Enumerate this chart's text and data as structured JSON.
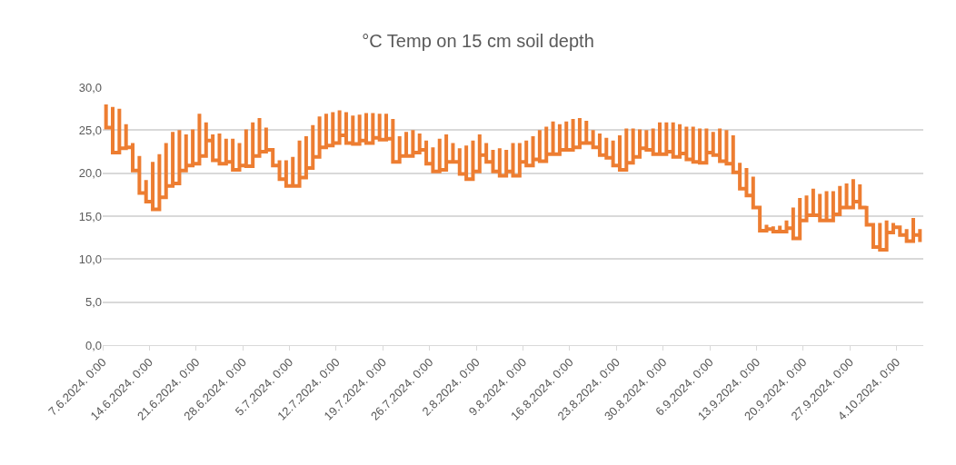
{
  "chart_data": {
    "type": "step",
    "title": "°C Temp on 15 cm soil depth",
    "xlim": [
      "2024-06-07",
      "2024-10-08"
    ],
    "xticks": [
      {
        "value": "2024-06-07",
        "label": "7.6.2024. 0:00"
      },
      {
        "value": "2024-06-14",
        "label": "14.6.2024. 0:00"
      },
      {
        "value": "2024-06-21",
        "label": "21.6.2024. 0:00"
      },
      {
        "value": "2024-06-28",
        "label": "28.6.2024. 0:00"
      },
      {
        "value": "2024-07-05",
        "label": "5.7.2024. 0:00"
      },
      {
        "value": "2024-07-12",
        "label": "12.7.2024. 0:00"
      },
      {
        "value": "2024-07-19",
        "label": "19.7.2024. 0:00"
      },
      {
        "value": "2024-07-26",
        "label": "26.7.2024. 0:00"
      },
      {
        "value": "2024-08-02",
        "label": "2.8.2024. 0:00"
      },
      {
        "value": "2024-08-09",
        "label": "9.8.2024. 0:00"
      },
      {
        "value": "2024-08-16",
        "label": "16.8.2024. 0:00"
      },
      {
        "value": "2024-08-23",
        "label": "23.8.2024. 0:00"
      },
      {
        "value": "2024-08-30",
        "label": "30.8.2024. 0:00"
      },
      {
        "value": "2024-09-06",
        "label": "6.9.2024. 0:00"
      },
      {
        "value": "2024-09-13",
        "label": "13.9.2024. 0:00"
      },
      {
        "value": "2024-09-20",
        "label": "20.9.2024. 0:00"
      },
      {
        "value": "2024-09-27",
        "label": "27.9.2024. 0:00"
      },
      {
        "value": "2024-10-04",
        "label": "4.10.2024. 0:00"
      }
    ],
    "ylim": [
      0,
      30
    ],
    "yticks": [
      {
        "value": 0,
        "label": "0,0"
      },
      {
        "value": 5,
        "label": "5,0"
      },
      {
        "value": 10,
        "label": "10,0"
      },
      {
        "value": 15,
        "label": "15,0"
      },
      {
        "value": 20,
        "label": "20,0"
      },
      {
        "value": 25,
        "label": "25,0"
      },
      {
        "value": 30,
        "label": "30,0"
      }
    ],
    "grid": "y",
    "marker": "none",
    "line_style": "solid",
    "series": [
      {
        "color": "#ed7d31",
        "x": [
          "2024-06-07T12:00",
          "2024-06-07T12:00",
          "2024-06-08T12:00",
          "2024-06-08T12:00",
          "2024-06-09T12:00",
          "2024-06-09T12:00",
          "2024-06-10T12:00",
          "2024-06-10T12:00",
          "2024-06-11T12:00",
          "2024-06-11T12:00",
          "2024-06-12T12:00",
          "2024-06-12T12:00",
          "2024-06-13T12:00",
          "2024-06-13T12:00",
          "2024-06-14T12:00",
          "2024-06-14T12:00",
          "2024-06-15T12:00",
          "2024-06-15T12:00",
          "2024-06-16T12:00",
          "2024-06-16T12:00",
          "2024-06-17T12:00",
          "2024-06-17T12:00",
          "2024-06-18T12:00",
          "2024-06-18T12:00",
          "2024-06-19T12:00",
          "2024-06-19T12:00",
          "2024-06-20T12:00",
          "2024-06-20T12:00",
          "2024-06-21T12:00",
          "2024-06-21T12:00",
          "2024-06-22T12:00",
          "2024-06-22T12:00",
          "2024-06-23T12:00",
          "2024-06-23T12:00",
          "2024-06-24T12:00",
          "2024-06-24T12:00",
          "2024-06-25T12:00",
          "2024-06-25T12:00",
          "2024-06-26T12:00",
          "2024-06-26T12:00",
          "2024-06-27T12:00",
          "2024-06-27T12:00",
          "2024-06-28T12:00",
          "2024-06-28T12:00",
          "2024-06-29T12:00",
          "2024-06-29T12:00",
          "2024-06-30T12:00",
          "2024-06-30T12:00",
          "2024-07-01T12:00",
          "2024-07-01T12:00",
          "2024-07-02T12:00",
          "2024-07-02T12:00",
          "2024-07-03T12:00",
          "2024-07-03T12:00",
          "2024-07-04T12:00",
          "2024-07-04T12:00",
          "2024-07-05T12:00",
          "2024-07-05T12:00",
          "2024-07-06T12:00",
          "2024-07-06T12:00",
          "2024-07-07T12:00",
          "2024-07-07T12:00",
          "2024-07-08T12:00",
          "2024-07-08T12:00",
          "2024-07-09T12:00",
          "2024-07-09T12:00",
          "2024-07-10T12:00",
          "2024-07-10T12:00",
          "2024-07-11T12:00",
          "2024-07-11T12:00",
          "2024-07-12T12:00",
          "2024-07-12T12:00",
          "2024-07-13T12:00",
          "2024-07-13T12:00",
          "2024-07-14T12:00",
          "2024-07-14T12:00",
          "2024-07-15T12:00",
          "2024-07-15T12:00",
          "2024-07-16T12:00",
          "2024-07-16T12:00",
          "2024-07-17T12:00",
          "2024-07-17T12:00",
          "2024-07-18T12:00",
          "2024-07-18T12:00",
          "2024-07-19T12:00",
          "2024-07-19T12:00",
          "2024-07-20T12:00",
          "2024-07-20T12:00",
          "2024-07-21T12:00",
          "2024-07-21T12:00",
          "2024-07-22T12:00",
          "2024-07-22T12:00",
          "2024-07-23T12:00",
          "2024-07-23T12:00",
          "2024-07-24T12:00",
          "2024-07-24T12:00",
          "2024-07-25T12:00",
          "2024-07-25T12:00",
          "2024-07-26T12:00",
          "2024-07-26T12:00",
          "2024-07-27T12:00",
          "2024-07-27T12:00",
          "2024-07-28T12:00",
          "2024-07-28T12:00",
          "2024-07-29T12:00",
          "2024-07-29T12:00",
          "2024-07-30T12:00",
          "2024-07-30T12:00",
          "2024-07-31T12:00",
          "2024-07-31T12:00",
          "2024-08-01T12:00",
          "2024-08-01T12:00",
          "2024-08-02T12:00",
          "2024-08-02T12:00",
          "2024-08-03T12:00",
          "2024-08-03T12:00",
          "2024-08-04T12:00",
          "2024-08-04T12:00",
          "2024-08-05T12:00",
          "2024-08-05T12:00",
          "2024-08-06T12:00",
          "2024-08-06T12:00",
          "2024-08-07T12:00",
          "2024-08-07T12:00",
          "2024-08-08T12:00",
          "2024-08-08T12:00",
          "2024-08-09T12:00",
          "2024-08-09T12:00",
          "2024-08-10T12:00",
          "2024-08-10T12:00",
          "2024-08-11T12:00",
          "2024-08-11T12:00",
          "2024-08-12T12:00",
          "2024-08-12T12:00",
          "2024-08-13T12:00",
          "2024-08-13T12:00",
          "2024-08-14T12:00",
          "2024-08-14T12:00",
          "2024-08-15T12:00",
          "2024-08-15T12:00",
          "2024-08-16T12:00",
          "2024-08-16T12:00",
          "2024-08-17T12:00",
          "2024-08-17T12:00",
          "2024-08-18T12:00",
          "2024-08-18T12:00",
          "2024-08-19T12:00",
          "2024-08-19T12:00",
          "2024-08-20T12:00",
          "2024-08-20T12:00",
          "2024-08-21T12:00",
          "2024-08-21T12:00",
          "2024-08-22T12:00",
          "2024-08-22T12:00",
          "2024-08-23T12:00",
          "2024-08-23T12:00",
          "2024-08-24T12:00",
          "2024-08-24T12:00",
          "2024-08-25T12:00",
          "2024-08-25T12:00",
          "2024-08-26T12:00",
          "2024-08-26T12:00",
          "2024-08-27T12:00",
          "2024-08-27T12:00",
          "2024-08-28T12:00",
          "2024-08-28T12:00",
          "2024-08-29T12:00",
          "2024-08-29T12:00",
          "2024-08-30T12:00",
          "2024-08-30T12:00",
          "2024-08-31T12:00",
          "2024-08-31T12:00",
          "2024-09-01T12:00",
          "2024-09-01T12:00",
          "2024-09-02T12:00",
          "2024-09-02T12:00",
          "2024-09-03T12:00",
          "2024-09-03T12:00",
          "2024-09-04T12:00",
          "2024-09-04T12:00",
          "2024-09-05T12:00",
          "2024-09-05T12:00",
          "2024-09-06T12:00",
          "2024-09-06T12:00",
          "2024-09-07T12:00",
          "2024-09-07T12:00",
          "2024-09-08T12:00",
          "2024-09-08T12:00",
          "2024-09-09T12:00",
          "2024-09-09T12:00",
          "2024-09-10T12:00",
          "2024-09-10T12:00",
          "2024-09-11T12:00",
          "2024-09-11T12:00",
          "2024-09-12T12:00",
          "2024-09-12T12:00",
          "2024-09-13T12:00",
          "2024-09-13T12:00",
          "2024-09-14T12:00",
          "2024-09-14T12:00",
          "2024-09-15T12:00",
          "2024-09-15T12:00",
          "2024-09-16T12:00",
          "2024-09-16T12:00",
          "2024-09-17T12:00",
          "2024-09-17T12:00",
          "2024-09-18T12:00",
          "2024-09-18T12:00",
          "2024-09-19T12:00",
          "2024-09-19T12:00",
          "2024-09-20T12:00",
          "2024-09-20T12:00",
          "2024-09-21T12:00",
          "2024-09-21T12:00",
          "2024-09-22T12:00",
          "2024-09-22T12:00",
          "2024-09-23T12:00",
          "2024-09-23T12:00",
          "2024-09-24T12:00",
          "2024-09-24T12:00",
          "2024-09-25T12:00",
          "2024-09-25T12:00",
          "2024-09-26T12:00",
          "2024-09-26T12:00",
          "2024-09-27T12:00",
          "2024-09-27T12:00",
          "2024-09-28T12:00",
          "2024-09-28T12:00",
          "2024-09-29T12:00",
          "2024-09-29T12:00",
          "2024-09-30T12:00",
          "2024-09-30T12:00",
          "2024-10-01T12:00",
          "2024-10-01T12:00",
          "2024-10-02T12:00",
          "2024-10-02T12:00",
          "2024-10-03T12:00",
          "2024-10-03T12:00",
          "2024-10-04T12:00",
          "2024-10-04T12:00",
          "2024-10-05T12:00",
          "2024-10-05T12:00",
          "2024-10-06T12:00",
          "2024-10-06T12:00",
          "2024-10-07T12:00",
          "2024-10-07T12:00"
        ],
        "values": [
          28.0,
          25.3,
          27.7,
          22.4,
          27.5,
          22.9,
          25.7,
          23.0,
          23.5,
          20.3,
          22.0,
          17.7,
          19.2,
          16.7,
          21.3,
          15.8,
          22.2,
          17.2,
          23.5,
          18.5,
          24.8,
          18.8,
          25.0,
          20.3,
          24.5,
          20.9,
          25.1,
          21.1,
          26.9,
          22.0,
          25.9,
          23.8,
          24.5,
          21.5,
          24.6,
          21.1,
          24.0,
          21.3,
          24.0,
          20.4,
          23.5,
          20.9,
          25.1,
          20.8,
          25.9,
          22.0,
          26.4,
          22.5,
          25.3,
          22.7,
          22.7,
          20.9,
          21.5,
          19.3,
          21.5,
          18.5,
          21.9,
          18.5,
          23.8,
          19.5,
          24.3,
          20.6,
          25.6,
          21.9,
          26.6,
          23.0,
          26.9,
          23.2,
          27.1,
          23.5,
          27.3,
          24.4,
          27.1,
          23.5,
          26.7,
          23.4,
          26.8,
          23.8,
          27.0,
          23.5,
          27.0,
          24.1,
          26.9,
          23.9,
          26.9,
          24.0,
          26.3,
          21.3,
          24.3,
          22.0,
          24.8,
          22.0,
          25.0,
          22.4,
          24.6,
          22.7,
          23.8,
          21.1,
          23.0,
          20.2,
          24.0,
          20.4,
          24.5,
          21.3,
          23.5,
          21.3,
          22.9,
          19.9,
          23.2,
          19.3,
          23.8,
          20.2,
          24.5,
          22.1,
          23.5,
          21.3,
          22.7,
          20.2,
          22.9,
          19.7,
          22.7,
          20.2,
          23.5,
          19.7,
          23.5,
          21.3,
          23.8,
          20.9,
          24.3,
          21.6,
          25.0,
          21.4,
          25.4,
          22.2,
          26.0,
          22.2,
          25.7,
          22.7,
          26.0,
          22.7,
          26.3,
          23.0,
          26.4,
          23.5,
          26.1,
          23.5,
          25.0,
          23.0,
          24.6,
          22.1,
          24.1,
          21.8,
          23.8,
          20.9,
          24.4,
          20.4,
          25.2,
          21.2,
          25.2,
          21.9,
          25.1,
          22.9,
          25.0,
          22.7,
          25.2,
          22.2,
          25.9,
          22.2,
          25.9,
          22.5,
          25.9,
          21.9,
          25.7,
          22.3,
          25.4,
          21.6,
          25.4,
          21.3,
          25.2,
          21.2,
          25.2,
          22.4,
          24.8,
          22.1,
          25.2,
          21.4,
          25.0,
          21.1,
          24.4,
          20.1,
          21.2,
          18.2,
          20.6,
          17.4,
          19.6,
          16.0,
          16.0,
          13.3,
          14.0,
          13.5,
          13.8,
          13.2,
          13.9,
          13.2,
          14.5,
          13.6,
          16.0,
          12.4,
          17.1,
          14.5,
          17.4,
          15.1,
          18.2,
          15.1,
          17.6,
          14.5,
          17.9,
          14.5,
          17.9,
          15.2,
          18.5,
          16.0,
          18.8,
          16.0,
          19.3,
          16.7,
          18.7,
          16.0,
          16.2,
          14.0,
          14.0,
          11.4,
          14.2,
          11.1,
          14.5,
          13.1,
          14.2,
          13.7,
          13.7,
          12.8,
          13.5,
          12.1,
          14.8,
          12.8,
          13.5,
          12.0
        ]
      }
    ]
  }
}
